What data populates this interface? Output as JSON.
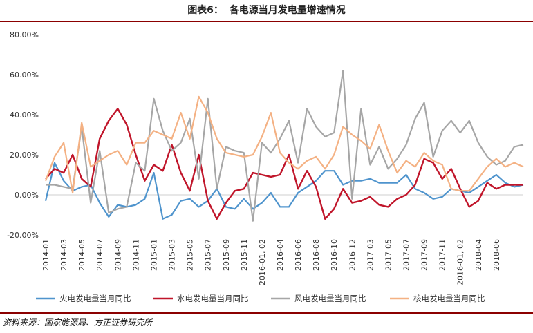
{
  "header": {
    "label": "图表6：",
    "text": "各电源当月发电量增速情况"
  },
  "footer": {
    "source": "资料来源：国家能源局、方正证券研究所"
  },
  "chart_data": {
    "type": "line",
    "yticks": [
      "80.00%",
      "60.00%",
      "40.00%",
      "20.00%",
      "0.00%",
      "-20.00%"
    ],
    "ylim": [
      -20,
      80
    ],
    "grid": false,
    "legend_position": "bottom",
    "x_tick_labels": [
      "2014-01",
      "2014-03",
      "2014-05",
      "2014-07",
      "2014-09",
      "2014-11",
      "2015-01",
      "2015-03",
      "2015-05",
      "2015-07",
      "2015-09",
      "2015-11",
      "2016-01, 02",
      "2016-04",
      "2016-06",
      "2016-08",
      "2016-10",
      "2016-12",
      "2017-03",
      "2017-05",
      "2017-07",
      "2017-09",
      "2017-11",
      "2018-01, 02",
      "2018-04",
      "2018-06"
    ],
    "x_tick_index": [
      0,
      2,
      4,
      6,
      8,
      10,
      12,
      14,
      16,
      18,
      20,
      22,
      24,
      26,
      28,
      30,
      32,
      34,
      36,
      38,
      40,
      42,
      44,
      46,
      48,
      50
    ],
    "n_points": 54,
    "series": [
      {
        "name": "火电发电量当月同比",
        "color": "#4f94cd",
        "values": [
          -3,
          16,
          7,
          2,
          4,
          5,
          -4,
          -11,
          -5,
          -6,
          -5,
          -2,
          11,
          -12,
          -10,
          -3,
          -2,
          -6,
          -3,
          3,
          -6,
          -7,
          -2,
          -7,
          -4,
          1,
          -6,
          -6,
          1,
          4,
          7,
          12,
          12,
          5,
          7,
          7,
          8,
          6,
          6,
          6,
          10,
          3,
          1,
          -2,
          -1,
          3,
          2,
          1,
          4,
          7,
          10,
          6,
          4,
          5
        ]
      },
      {
        "name": "水电发电量当月同比",
        "color": "#c0152a",
        "values": [
          8,
          13,
          11,
          20,
          8,
          4,
          28,
          37,
          43,
          35,
          20,
          7,
          15,
          12,
          25,
          11,
          2,
          20,
          -3,
          -12,
          -4,
          2,
          3,
          11,
          10,
          9,
          10,
          20,
          3,
          12,
          4,
          -12,
          -7,
          3,
          -4,
          -3,
          -1,
          -5,
          -6,
          -2,
          0,
          5,
          18,
          16,
          8,
          13,
          3,
          -6,
          -3,
          6,
          3,
          5,
          5,
          5
        ]
      },
      {
        "name": "风电发电量当月同比",
        "color": "#a6a6a6",
        "values": [
          5,
          5,
          4,
          3,
          34,
          -4,
          22,
          -9,
          -7,
          -6,
          16,
          12,
          48,
          32,
          22,
          26,
          38,
          8,
          48,
          3,
          24,
          22,
          21,
          -13,
          26,
          21,
          28,
          37,
          16,
          43,
          34,
          29,
          31,
          62,
          -2,
          43,
          15,
          24,
          13,
          18,
          25,
          38,
          46,
          19,
          32,
          37,
          31,
          37,
          26,
          19,
          15,
          17,
          24,
          25
        ]
      },
      {
        "name": "核电发电量当月同比",
        "color": "#f4b183",
        "values": [
          7,
          19,
          26,
          1,
          36,
          14,
          17,
          20,
          22,
          15,
          26,
          26,
          32,
          30,
          28,
          41,
          28,
          49,
          41,
          28,
          21,
          20,
          19,
          20,
          29,
          41,
          21,
          16,
          13,
          17,
          19,
          13,
          20,
          34,
          30,
          27,
          23,
          35,
          22,
          11,
          17,
          14,
          21,
          17,
          15,
          3,
          2,
          2,
          8,
          14,
          18,
          14,
          16,
          14
        ]
      }
    ]
  }
}
